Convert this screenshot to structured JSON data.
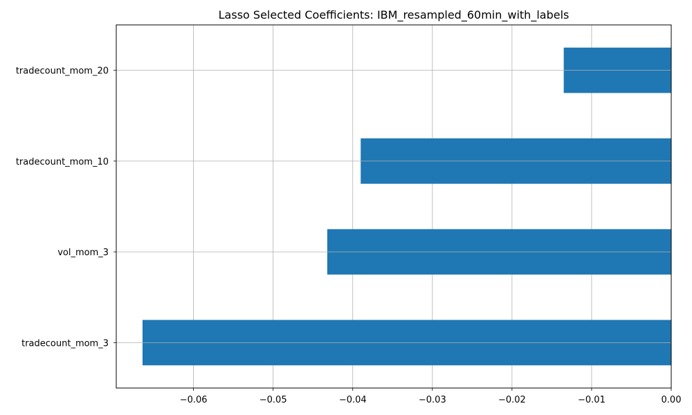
{
  "chart_data": {
    "type": "bar",
    "orientation": "horizontal",
    "title": "Lasso Selected Coefficients: IBM_resampled_60min_with_labels",
    "xlabel": "",
    "ylabel": "",
    "categories": [
      "tradecount_mom_3",
      "vol_mom_3",
      "tradecount_mom_10",
      "tradecount_mom_20"
    ],
    "values": [
      -0.0664,
      -0.0432,
      -0.039,
      -0.0135
    ],
    "xlim": [
      -0.0697,
      0.0
    ],
    "xticks": [
      -0.06,
      -0.05,
      -0.04,
      -0.03,
      -0.02,
      -0.01,
      0.0
    ],
    "xtick_labels": [
      "−0.06",
      "−0.05",
      "−0.04",
      "−0.03",
      "−0.02",
      "−0.01",
      "0.00"
    ],
    "grid": true,
    "legend": "none",
    "colors": {
      "bar": "#1f77b4",
      "grid": "#b0b0b0",
      "axis": "#000000"
    }
  }
}
